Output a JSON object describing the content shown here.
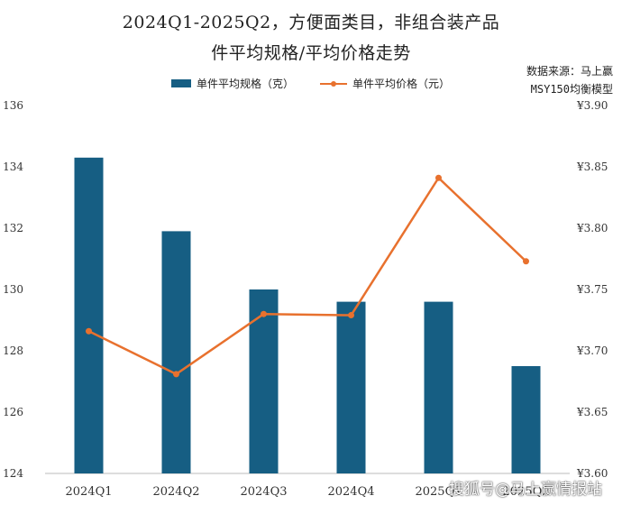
{
  "title_line1": "2024Q1-2025Q2，方便面类目，非组合装产品",
  "title_line2": "件平均规格/平均价格走势",
  "source_line1": "数据来源：马上赢",
  "source_line2": "MSY150均衡模型",
  "watermark": "搜狐号@马上赢情报站",
  "colors": {
    "bar": "#165E83",
    "line": "#E8712E"
  },
  "chart_data": {
    "type": "bar+line",
    "categories": [
      "2024Q1",
      "2024Q2",
      "2024Q3",
      "2024Q4",
      "2025Q1",
      "2025Q2"
    ],
    "series": [
      {
        "name": "单件平均规格（克）",
        "type": "bar",
        "axis": "left",
        "values": [
          134.3,
          131.9,
          130.0,
          129.6,
          129.6,
          127.5
        ]
      },
      {
        "name": "单件平均价格（元）",
        "type": "line",
        "axis": "right",
        "values": [
          3.716,
          3.681,
          3.73,
          3.729,
          3.841,
          3.773
        ]
      }
    ],
    "y_left": {
      "range": [
        124,
        136
      ],
      "ticks": [
        "124",
        "126",
        "128",
        "130",
        "132",
        "134",
        "136"
      ]
    },
    "y_right": {
      "range": [
        3.6,
        3.9
      ],
      "ticks": [
        "¥3.60",
        "¥3.65",
        "¥3.70",
        "¥3.75",
        "¥3.80",
        "¥3.85",
        "¥3.90"
      ]
    },
    "grid": false,
    "legend_position": "top-center"
  }
}
